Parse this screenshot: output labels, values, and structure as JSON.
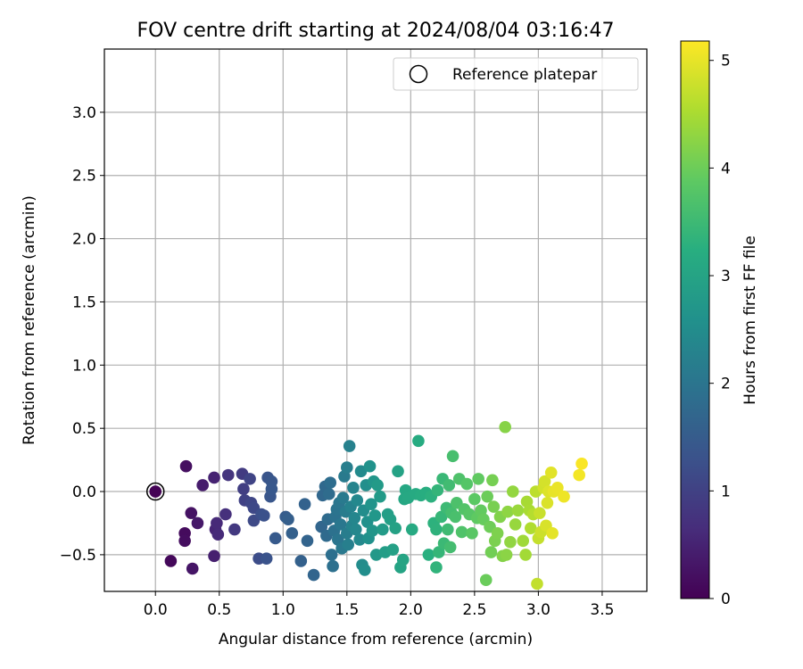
{
  "chart_data": {
    "type": "scatter",
    "title": "FOV centre drift starting at 2024/08/04 03:16:47",
    "xlabel": "Angular distance from reference (arcmin)",
    "ylabel": "Rotation from reference (arcmin)",
    "xlim": [
      -0.4,
      3.85
    ],
    "ylim": [
      -0.79,
      3.5
    ],
    "xticks": [
      0.0,
      0.5,
      1.0,
      1.5,
      2.0,
      2.5,
      3.0,
      3.5
    ],
    "xtick_labels": [
      "0.0",
      "0.5",
      "1.0",
      "1.5",
      "2.0",
      "2.5",
      "3.0",
      "3.5"
    ],
    "yticks": [
      -0.5,
      0.0,
      0.5,
      1.0,
      1.5,
      2.0,
      2.5,
      3.0
    ],
    "ytick_labels": [
      "−0.5",
      "0.0",
      "0.5",
      "1.0",
      "1.5",
      "2.0",
      "2.5",
      "3.0"
    ],
    "grid": true,
    "legend": {
      "placement": "upper-right",
      "entries": [
        {
          "label": "Reference platepar",
          "marker": "open-circle"
        }
      ]
    },
    "reference_point": {
      "x": 0.0,
      "y": 0.0
    },
    "colorbar": {
      "label": "Hours from first FF file",
      "range": [
        0,
        5.18
      ],
      "ticks": [
        0,
        1,
        2,
        3,
        4,
        5
      ],
      "tick_labels": [
        "0",
        "1",
        "2",
        "3",
        "4",
        "5"
      ],
      "colormap": "viridis"
    },
    "points": [
      {
        "x": 0.0,
        "y": 0.0,
        "h": 0.02
      },
      {
        "x": 0.12,
        "y": -0.55,
        "h": 0.1
      },
      {
        "x": 0.23,
        "y": -0.33,
        "h": 0.15
      },
      {
        "x": 0.23,
        "y": -0.39,
        "h": 0.18
      },
      {
        "x": 0.24,
        "y": 0.2,
        "h": 0.2
      },
      {
        "x": 0.28,
        "y": -0.17,
        "h": 0.25
      },
      {
        "x": 0.29,
        "y": -0.61,
        "h": 0.3
      },
      {
        "x": 0.33,
        "y": -0.25,
        "h": 0.35
      },
      {
        "x": 0.37,
        "y": 0.05,
        "h": 0.4
      },
      {
        "x": 0.46,
        "y": -0.51,
        "h": 0.45
      },
      {
        "x": 0.46,
        "y": 0.11,
        "h": 0.5
      },
      {
        "x": 0.47,
        "y": -0.3,
        "h": 0.55
      },
      {
        "x": 0.48,
        "y": -0.25,
        "h": 0.6
      },
      {
        "x": 0.49,
        "y": -0.34,
        "h": 0.62
      },
      {
        "x": 0.55,
        "y": -0.18,
        "h": 0.7
      },
      {
        "x": 0.57,
        "y": 0.13,
        "h": 0.78
      },
      {
        "x": 0.62,
        "y": -0.3,
        "h": 0.85
      },
      {
        "x": 0.68,
        "y": 0.14,
        "h": 0.9
      },
      {
        "x": 0.69,
        "y": 0.02,
        "h": 0.95
      },
      {
        "x": 0.7,
        "y": -0.07,
        "h": 1.0
      },
      {
        "x": 0.74,
        "y": 0.1,
        "h": 1.05
      },
      {
        "x": 0.75,
        "y": -0.09,
        "h": 1.08
      },
      {
        "x": 0.77,
        "y": -0.13,
        "h": 1.12
      },
      {
        "x": 0.77,
        "y": -0.23,
        "h": 1.15
      },
      {
        "x": 0.81,
        "y": -0.53,
        "h": 1.2
      },
      {
        "x": 0.83,
        "y": -0.18,
        "h": 1.25
      },
      {
        "x": 0.85,
        "y": -0.19,
        "h": 1.28
      },
      {
        "x": 0.87,
        "y": -0.53,
        "h": 1.32
      },
      {
        "x": 0.88,
        "y": 0.11,
        "h": 1.35
      },
      {
        "x": 0.9,
        "y": -0.04,
        "h": 1.38
      },
      {
        "x": 0.91,
        "y": 0.08,
        "h": 1.4
      },
      {
        "x": 0.91,
        "y": 0.02,
        "h": 1.42
      },
      {
        "x": 0.94,
        "y": -0.37,
        "h": 1.45
      },
      {
        "x": 1.02,
        "y": -0.2,
        "h": 1.5
      },
      {
        "x": 1.04,
        "y": -0.22,
        "h": 1.55
      },
      {
        "x": 1.07,
        "y": -0.33,
        "h": 1.58
      },
      {
        "x": 1.14,
        "y": -0.55,
        "h": 1.6
      },
      {
        "x": 1.17,
        "y": -0.1,
        "h": 1.62
      },
      {
        "x": 1.19,
        "y": -0.39,
        "h": 1.65
      },
      {
        "x": 1.24,
        "y": -0.66,
        "h": 1.68
      },
      {
        "x": 1.3,
        "y": -0.28,
        "h": 1.7
      },
      {
        "x": 1.31,
        "y": -0.03,
        "h": 1.72
      },
      {
        "x": 1.33,
        "y": 0.04,
        "h": 1.75
      },
      {
        "x": 1.34,
        "y": -0.35,
        "h": 1.78
      },
      {
        "x": 1.35,
        "y": -0.22,
        "h": 1.8
      },
      {
        "x": 1.36,
        "y": -0.02,
        "h": 1.82
      },
      {
        "x": 1.37,
        "y": 0.07,
        "h": 1.85
      },
      {
        "x": 1.38,
        "y": -0.5,
        "h": 1.88
      },
      {
        "x": 1.39,
        "y": -0.59,
        "h": 1.9
      },
      {
        "x": 1.4,
        "y": -0.31,
        "h": 1.92
      },
      {
        "x": 1.41,
        "y": -0.2,
        "h": 1.95
      },
      {
        "x": 1.42,
        "y": -0.14,
        "h": 1.98
      },
      {
        "x": 1.43,
        "y": -0.38,
        "h": 2.0
      },
      {
        "x": 1.44,
        "y": -0.09,
        "h": 2.02
      },
      {
        "x": 1.45,
        "y": -0.26,
        "h": 2.05
      },
      {
        "x": 1.46,
        "y": -0.45,
        "h": 2.08
      },
      {
        "x": 1.47,
        "y": -0.05,
        "h": 2.1
      },
      {
        "x": 1.48,
        "y": 0.12,
        "h": 2.12
      },
      {
        "x": 1.49,
        "y": -0.16,
        "h": 2.15
      },
      {
        "x": 1.5,
        "y": -0.33,
        "h": 2.18
      },
      {
        "x": 1.5,
        "y": 0.19,
        "h": 2.2
      },
      {
        "x": 1.51,
        "y": -0.42,
        "h": 2.22
      },
      {
        "x": 1.52,
        "y": 0.36,
        "h": 2.25
      },
      {
        "x": 1.53,
        "y": -0.12,
        "h": 2.28
      },
      {
        "x": 1.54,
        "y": -0.27,
        "h": 2.3
      },
      {
        "x": 1.55,
        "y": 0.03,
        "h": 2.32
      },
      {
        "x": 1.56,
        "y": -0.21,
        "h": 2.35
      },
      {
        "x": 1.57,
        "y": -0.3,
        "h": 2.38
      },
      {
        "x": 1.58,
        "y": -0.07,
        "h": 2.4
      },
      {
        "x": 1.6,
        "y": -0.38,
        "h": 2.42
      },
      {
        "x": 1.61,
        "y": 0.16,
        "h": 2.45
      },
      {
        "x": 1.62,
        "y": -0.58,
        "h": 2.48
      },
      {
        "x": 1.63,
        "y": -0.15,
        "h": 2.5
      },
      {
        "x": 1.64,
        "y": -0.62,
        "h": 2.52
      },
      {
        "x": 1.65,
        "y": 0.05,
        "h": 2.55
      },
      {
        "x": 1.66,
        "y": -0.24,
        "h": 2.58
      },
      {
        "x": 1.67,
        "y": -0.37,
        "h": 2.6
      },
      {
        "x": 1.68,
        "y": 0.2,
        "h": 2.62
      },
      {
        "x": 1.69,
        "y": -0.1,
        "h": 2.65
      },
      {
        "x": 1.7,
        "y": -0.31,
        "h": 2.68
      },
      {
        "x": 1.71,
        "y": 0.08,
        "h": 2.7
      },
      {
        "x": 1.72,
        "y": -0.19,
        "h": 2.72
      },
      {
        "x": 1.73,
        "y": -0.5,
        "h": 2.75
      },
      {
        "x": 1.74,
        "y": 0.05,
        "h": 2.78
      },
      {
        "x": 1.76,
        "y": -0.04,
        "h": 2.8
      },
      {
        "x": 1.78,
        "y": -0.3,
        "h": 2.82
      },
      {
        "x": 1.8,
        "y": -0.48,
        "h": 2.85
      },
      {
        "x": 1.82,
        "y": -0.18,
        "h": 2.88
      },
      {
        "x": 1.84,
        "y": -0.22,
        "h": 2.9
      },
      {
        "x": 1.86,
        "y": -0.46,
        "h": 2.92
      },
      {
        "x": 1.88,
        "y": -0.29,
        "h": 2.95
      },
      {
        "x": 1.9,
        "y": 0.16,
        "h": 2.98
      },
      {
        "x": 1.92,
        "y": -0.6,
        "h": 3.0
      },
      {
        "x": 1.94,
        "y": -0.54,
        "h": 3.02
      },
      {
        "x": 1.95,
        "y": -0.06,
        "h": 3.05
      },
      {
        "x": 1.96,
        "y": 0.01,
        "h": 3.08
      },
      {
        "x": 1.98,
        "y": -0.05,
        "h": 3.1
      },
      {
        "x": 2.01,
        "y": -0.3,
        "h": 3.12
      },
      {
        "x": 2.04,
        "y": -0.02,
        "h": 3.15
      },
      {
        "x": 2.06,
        "y": 0.4,
        "h": 3.18
      },
      {
        "x": 2.08,
        "y": -0.03,
        "h": 3.2
      },
      {
        "x": 2.12,
        "y": -0.01,
        "h": 3.22
      },
      {
        "x": 2.14,
        "y": -0.5,
        "h": 3.25
      },
      {
        "x": 2.16,
        "y": -0.04,
        "h": 3.28
      },
      {
        "x": 2.18,
        "y": -0.25,
        "h": 3.3
      },
      {
        "x": 2.2,
        "y": -0.3,
        "h": 3.32
      },
      {
        "x": 2.2,
        "y": -0.6,
        "h": 3.35
      },
      {
        "x": 2.21,
        "y": 0.01,
        "h": 3.38
      },
      {
        "x": 2.22,
        "y": -0.48,
        "h": 3.4
      },
      {
        "x": 2.24,
        "y": -0.2,
        "h": 3.42
      },
      {
        "x": 2.25,
        "y": 0.1,
        "h": 3.45
      },
      {
        "x": 2.26,
        "y": -0.41,
        "h": 3.48
      },
      {
        "x": 2.28,
        "y": -0.13,
        "h": 3.5
      },
      {
        "x": 2.29,
        "y": -0.3,
        "h": 3.52
      },
      {
        "x": 2.3,
        "y": 0.05,
        "h": 3.55
      },
      {
        "x": 2.31,
        "y": -0.44,
        "h": 3.58
      },
      {
        "x": 2.32,
        "y": -0.17,
        "h": 3.6
      },
      {
        "x": 2.33,
        "y": 0.28,
        "h": 3.62
      },
      {
        "x": 2.35,
        "y": -0.2,
        "h": 3.65
      },
      {
        "x": 2.36,
        "y": -0.09,
        "h": 3.68
      },
      {
        "x": 2.38,
        "y": 0.1,
        "h": 3.7
      },
      {
        "x": 2.4,
        "y": -0.32,
        "h": 3.72
      },
      {
        "x": 2.42,
        "y": -0.14,
        "h": 3.75
      },
      {
        "x": 2.44,
        "y": 0.06,
        "h": 3.78
      },
      {
        "x": 2.46,
        "y": -0.18,
        "h": 3.8
      },
      {
        "x": 2.48,
        "y": -0.33,
        "h": 3.82
      },
      {
        "x": 2.5,
        "y": -0.06,
        "h": 3.85
      },
      {
        "x": 2.52,
        "y": -0.21,
        "h": 3.88
      },
      {
        "x": 2.53,
        "y": 0.1,
        "h": 3.9
      },
      {
        "x": 2.55,
        "y": -0.15,
        "h": 3.92
      },
      {
        "x": 2.57,
        "y": -0.22,
        "h": 3.95
      },
      {
        "x": 2.59,
        "y": -0.7,
        "h": 3.98
      },
      {
        "x": 2.6,
        "y": -0.04,
        "h": 4.0
      },
      {
        "x": 2.62,
        "y": -0.28,
        "h": 4.02
      },
      {
        "x": 2.63,
        "y": -0.48,
        "h": 4.05
      },
      {
        "x": 2.64,
        "y": 0.09,
        "h": 4.08
      },
      {
        "x": 2.65,
        "y": -0.12,
        "h": 4.1
      },
      {
        "x": 2.66,
        "y": -0.39,
        "h": 4.12
      },
      {
        "x": 2.68,
        "y": -0.33,
        "h": 4.15
      },
      {
        "x": 2.7,
        "y": -0.2,
        "h": 4.18
      },
      {
        "x": 2.72,
        "y": -0.51,
        "h": 4.2
      },
      {
        "x": 2.74,
        "y": 0.51,
        "h": 4.22
      },
      {
        "x": 2.75,
        "y": -0.5,
        "h": 4.25
      },
      {
        "x": 2.76,
        "y": -0.16,
        "h": 4.28
      },
      {
        "x": 2.78,
        "y": -0.4,
        "h": 4.3
      },
      {
        "x": 2.8,
        "y": 0.0,
        "h": 4.32
      },
      {
        "x": 2.82,
        "y": -0.26,
        "h": 4.35
      },
      {
        "x": 2.84,
        "y": -0.15,
        "h": 4.38
      },
      {
        "x": 2.88,
        "y": -0.39,
        "h": 4.42
      },
      {
        "x": 2.9,
        "y": -0.5,
        "h": 4.45
      },
      {
        "x": 2.91,
        "y": -0.08,
        "h": 4.48
      },
      {
        "x": 2.93,
        "y": -0.15,
        "h": 4.5
      },
      {
        "x": 2.94,
        "y": -0.29,
        "h": 4.55
      },
      {
        "x": 2.96,
        "y": -0.18,
        "h": 4.6
      },
      {
        "x": 2.98,
        "y": 0.0,
        "h": 4.65
      },
      {
        "x": 2.99,
        "y": -0.73,
        "h": 4.7
      },
      {
        "x": 3.0,
        "y": -0.37,
        "h": 4.72
      },
      {
        "x": 3.01,
        "y": -0.17,
        "h": 4.75
      },
      {
        "x": 3.02,
        "y": -0.32,
        "h": 4.78
      },
      {
        "x": 3.04,
        "y": 0.03,
        "h": 4.82
      },
      {
        "x": 3.05,
        "y": 0.08,
        "h": 4.85
      },
      {
        "x": 3.06,
        "y": -0.27,
        "h": 4.88
      },
      {
        "x": 3.07,
        "y": -0.09,
        "h": 4.9
      },
      {
        "x": 3.08,
        "y": 0.0,
        "h": 4.92
      },
      {
        "x": 3.1,
        "y": 0.15,
        "h": 4.95
      },
      {
        "x": 3.11,
        "y": -0.33,
        "h": 4.98
      },
      {
        "x": 3.12,
        "y": 0.0,
        "h": 5.0
      },
      {
        "x": 3.15,
        "y": 0.03,
        "h": 5.03
      },
      {
        "x": 3.2,
        "y": -0.04,
        "h": 5.06
      },
      {
        "x": 3.32,
        "y": 0.13,
        "h": 5.1
      },
      {
        "x": 3.34,
        "y": 0.22,
        "h": 5.15
      }
    ]
  }
}
